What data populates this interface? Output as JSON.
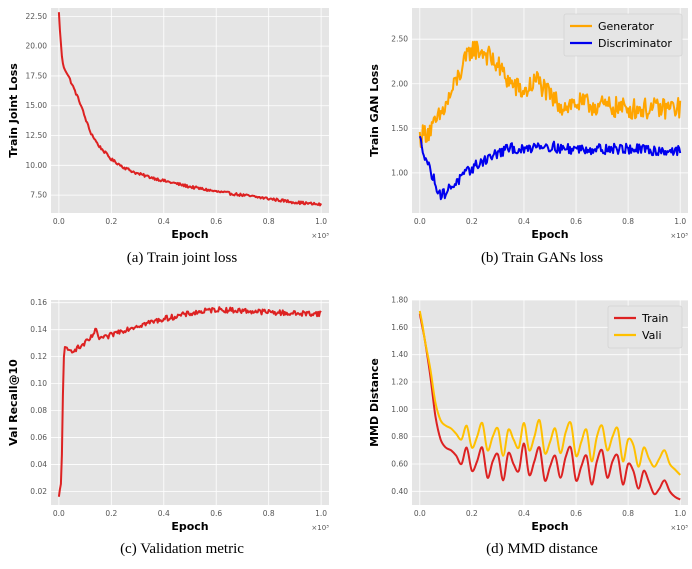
{
  "chart_data": [
    {
      "type": "line",
      "ylabel": "Train Joint Loss",
      "xlabel": "Epoch",
      "x_multiplier": "×10³",
      "caption": "(a) Train joint loss",
      "xlim": [
        -0.03,
        1.03
      ],
      "ylim": [
        6.0,
        23.2
      ],
      "xticks": [
        0.0,
        0.2,
        0.4,
        0.6,
        0.8,
        1.0
      ],
      "xtick_labels": [
        "0.0",
        "0.2",
        "0.4",
        "0.6",
        "0.8",
        "1.0"
      ],
      "yticks": [
        7.5,
        10.0,
        12.5,
        15.0,
        17.5,
        20.0,
        22.5
      ],
      "ytick_labels": [
        "7.50",
        "10.00",
        "12.50",
        "15.00",
        "17.50",
        "20.00",
        "22.50"
      ],
      "grid": true,
      "series": [
        {
          "color": "#dd2222",
          "noise": 0.12,
          "x": [
            0,
            0.005,
            0.01,
            0.015,
            0.02,
            0.03,
            0.05,
            0.08,
            0.1,
            0.12,
            0.15,
            0.2,
            0.25,
            0.3,
            0.35,
            0.4,
            0.5,
            0.6,
            0.7,
            0.8,
            0.9,
            1.0
          ],
          "values": [
            22.8,
            21.0,
            19.5,
            18.5,
            18.2,
            17.8,
            16.8,
            15.3,
            14.0,
            12.8,
            11.7,
            10.5,
            9.8,
            9.3,
            9.0,
            8.7,
            8.2,
            7.8,
            7.5,
            7.2,
            6.9,
            6.7
          ]
        }
      ]
    },
    {
      "type": "line",
      "ylabel": "Train GAN Loss",
      "xlabel": "Epoch",
      "x_multiplier": "×10³",
      "caption": "(b) Train GANs loss",
      "xlim": [
        -0.03,
        1.03
      ],
      "ylim": [
        0.55,
        2.85
      ],
      "xticks": [
        0.0,
        0.2,
        0.4,
        0.6,
        0.8,
        1.0
      ],
      "xtick_labels": [
        "0.0",
        "0.2",
        "0.4",
        "0.6",
        "0.8",
        "1.0"
      ],
      "yticks": [
        1.0,
        1.5,
        2.0,
        2.5
      ],
      "ytick_labels": [
        "1.00",
        "1.50",
        "2.00",
        "2.50"
      ],
      "grid": true,
      "legend_position": "top-right",
      "series": [
        {
          "name": "Generator",
          "color": "#ffa500",
          "noise": 0.12,
          "x": [
            0,
            0.02,
            0.05,
            0.1,
            0.15,
            0.2,
            0.25,
            0.3,
            0.35,
            0.4,
            0.45,
            0.5,
            0.55,
            0.6,
            0.7,
            0.8,
            0.9,
            1.0
          ],
          "values": [
            1.4,
            1.45,
            1.5,
            1.75,
            2.1,
            2.4,
            2.35,
            2.2,
            2.0,
            1.9,
            2.05,
            1.85,
            1.75,
            1.78,
            1.75,
            1.72,
            1.72,
            1.73
          ]
        },
        {
          "name": "Discriminator",
          "color": "#0000ee",
          "noise": 0.06,
          "x": [
            0,
            0.02,
            0.05,
            0.08,
            0.1,
            0.12,
            0.15,
            0.2,
            0.25,
            0.3,
            0.35,
            0.4,
            0.45,
            0.5,
            0.55,
            0.6,
            0.7,
            0.8,
            0.9,
            1.0
          ],
          "values": [
            1.38,
            1.2,
            0.95,
            0.75,
            0.78,
            0.85,
            0.92,
            1.05,
            1.15,
            1.22,
            1.28,
            1.25,
            1.32,
            1.3,
            1.27,
            1.27,
            1.27,
            1.27,
            1.25,
            1.25
          ]
        }
      ]
    },
    {
      "type": "line",
      "ylabel": "Val Recall@10",
      "xlabel": "Epoch",
      "x_multiplier": "×10³",
      "caption": "(c) Validation metric",
      "xlim": [
        -0.03,
        1.03
      ],
      "ylim": [
        0.01,
        0.162
      ],
      "xticks": [
        0.0,
        0.2,
        0.4,
        0.6,
        0.8,
        1.0
      ],
      "xtick_labels": [
        "0.0",
        "0.2",
        "0.4",
        "0.6",
        "0.8",
        "1.0"
      ],
      "yticks": [
        0.02,
        0.04,
        0.06,
        0.08,
        0.1,
        0.12,
        0.14,
        0.16
      ],
      "ytick_labels": [
        "0.02",
        "0.04",
        "0.06",
        "0.08",
        "0.10",
        "0.12",
        "0.14",
        "0.16"
      ],
      "grid": true,
      "series": [
        {
          "color": "#dd2222",
          "noise": 0.002,
          "x": [
            0,
            0.005,
            0.01,
            0.015,
            0.02,
            0.04,
            0.08,
            0.12,
            0.14,
            0.15,
            0.18,
            0.22,
            0.3,
            0.4,
            0.5,
            0.6,
            0.7,
            0.8,
            0.9,
            1.0
          ],
          "values": [
            0.015,
            0.022,
            0.028,
            0.09,
            0.126,
            0.124,
            0.127,
            0.133,
            0.14,
            0.134,
            0.134,
            0.138,
            0.143,
            0.148,
            0.152,
            0.155,
            0.154,
            0.153,
            0.152,
            0.152
          ]
        }
      ]
    },
    {
      "type": "line",
      "ylabel": "MMD Distance",
      "xlabel": "Epoch",
      "x_multiplier": "×10³",
      "caption": "(d) MMD distance",
      "xlim": [
        -0.03,
        1.03
      ],
      "ylim": [
        0.3,
        1.8
      ],
      "xticks": [
        0.0,
        0.2,
        0.4,
        0.6,
        0.8,
        1.0
      ],
      "xtick_labels": [
        "0.0",
        "0.2",
        "0.4",
        "0.6",
        "0.8",
        "1.0"
      ],
      "yticks": [
        0.4,
        0.6,
        0.8,
        1.0,
        1.2,
        1.4,
        1.6,
        1.8
      ],
      "ytick_labels": [
        "0.40",
        "0.60",
        "0.80",
        "1.00",
        "1.20",
        "1.40",
        "1.60",
        "1.80"
      ],
      "grid": true,
      "legend_position": "top-right",
      "series": [
        {
          "name": "Train",
          "color": "#dd2222",
          "noise": 0.0,
          "x": [
            0,
            0.01,
            0.02,
            0.04,
            0.06,
            0.08,
            0.1,
            0.12,
            0.14,
            0.16,
            0.18,
            0.2,
            0.22,
            0.24,
            0.26,
            0.28,
            0.3,
            0.32,
            0.34,
            0.36,
            0.38,
            0.4,
            0.42,
            0.44,
            0.46,
            0.48,
            0.5,
            0.52,
            0.54,
            0.56,
            0.58,
            0.6,
            0.62,
            0.64,
            0.66,
            0.68,
            0.7,
            0.72,
            0.74,
            0.76,
            0.78,
            0.8,
            0.82,
            0.84,
            0.86,
            0.88,
            0.9,
            0.92,
            0.94,
            0.96,
            0.98,
            1.0
          ],
          "values": [
            1.7,
            1.6,
            1.5,
            1.25,
            0.95,
            0.78,
            0.72,
            0.7,
            0.66,
            0.6,
            0.72,
            0.55,
            0.62,
            0.72,
            0.5,
            0.62,
            0.67,
            0.48,
            0.68,
            0.6,
            0.55,
            0.75,
            0.52,
            0.62,
            0.72,
            0.48,
            0.58,
            0.66,
            0.5,
            0.65,
            0.72,
            0.48,
            0.58,
            0.66,
            0.45,
            0.62,
            0.7,
            0.5,
            0.62,
            0.66,
            0.45,
            0.6,
            0.55,
            0.42,
            0.55,
            0.47,
            0.38,
            0.42,
            0.48,
            0.4,
            0.36,
            0.34
          ]
        },
        {
          "name": "Vali",
          "color": "#ffc000",
          "noise": 0.0,
          "x": [
            0,
            0.01,
            0.02,
            0.04,
            0.06,
            0.08,
            0.1,
            0.12,
            0.14,
            0.16,
            0.18,
            0.2,
            0.22,
            0.24,
            0.26,
            0.28,
            0.3,
            0.32,
            0.34,
            0.36,
            0.38,
            0.4,
            0.42,
            0.44,
            0.46,
            0.48,
            0.5,
            0.52,
            0.54,
            0.56,
            0.58,
            0.6,
            0.62,
            0.64,
            0.66,
            0.68,
            0.7,
            0.72,
            0.74,
            0.76,
            0.78,
            0.8,
            0.82,
            0.84,
            0.86,
            0.88,
            0.9,
            0.92,
            0.94,
            0.96,
            0.98,
            1.0
          ],
          "values": [
            1.72,
            1.62,
            1.5,
            1.3,
            1.05,
            0.92,
            0.88,
            0.86,
            0.82,
            0.78,
            0.88,
            0.72,
            0.8,
            0.9,
            0.7,
            0.8,
            0.86,
            0.66,
            0.85,
            0.78,
            0.72,
            0.9,
            0.7,
            0.8,
            0.92,
            0.68,
            0.76,
            0.86,
            0.68,
            0.83,
            0.9,
            0.66,
            0.76,
            0.85,
            0.62,
            0.8,
            0.88,
            0.7,
            0.8,
            0.86,
            0.62,
            0.78,
            0.74,
            0.58,
            0.72,
            0.64,
            0.58,
            0.64,
            0.7,
            0.6,
            0.56,
            0.52
          ]
        }
      ]
    }
  ]
}
